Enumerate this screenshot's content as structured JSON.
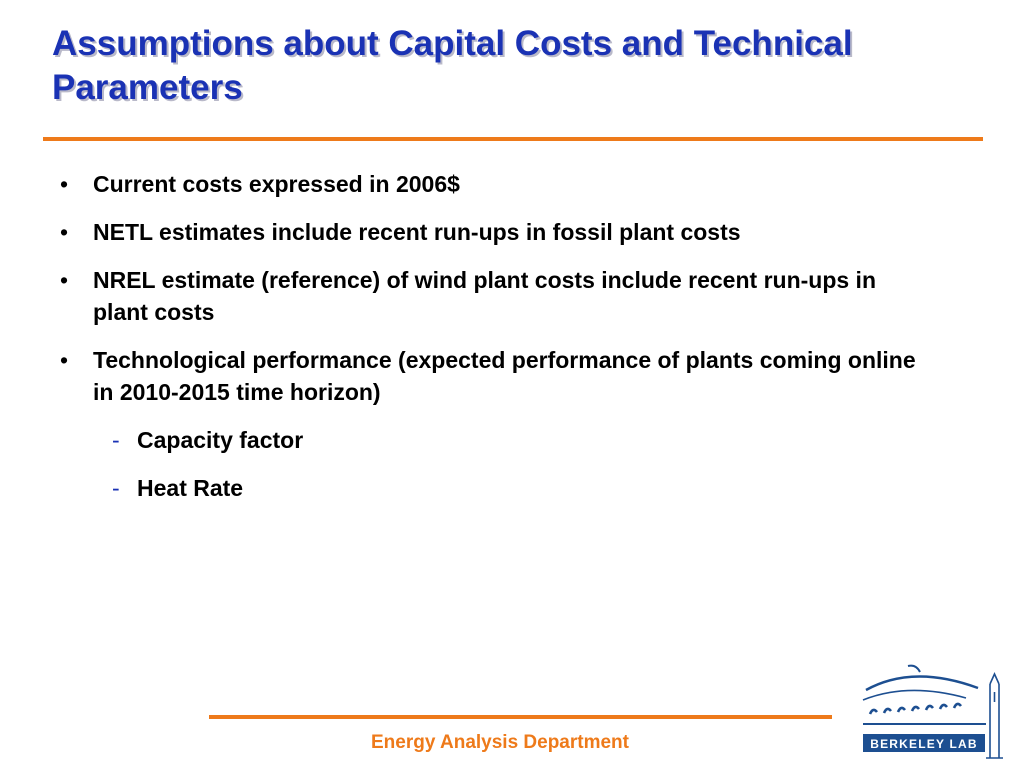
{
  "slide": {
    "title": "Assumptions about Capital Costs and Technical Parameters",
    "bullets": [
      "Current costs expressed in 2006$",
      "NETL estimates include recent run-ups in fossil plant costs",
      "NREL estimate (reference) of wind plant costs include recent run-ups in plant costs",
      "Technological performance (expected performance of plants coming online in 2010-2015 time horizon)"
    ],
    "sub_bullets": [
      "Capacity factor",
      "Heat Rate"
    ],
    "bullet_symbol": "•",
    "sub_bullet_symbol": "-"
  },
  "footer": {
    "department": "Energy Analysis Department"
  },
  "logo": {
    "text": "BERKELEY LAB",
    "icon": "berkeley-lab-logo"
  },
  "colors": {
    "title": "#1a32b4",
    "accent": "#ee7a1a",
    "logo_blue": "#1d4f91"
  }
}
